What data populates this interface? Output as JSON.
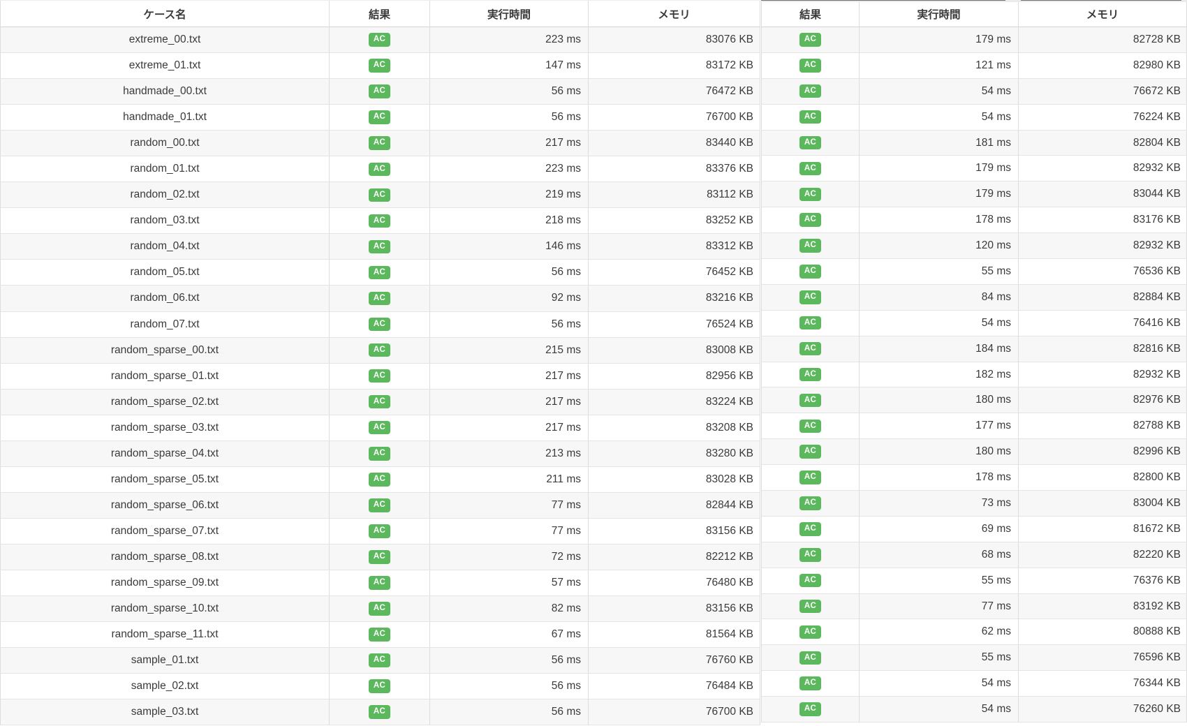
{
  "results_table": {
    "left_headers": [
      "ケース名",
      "結果",
      "実行時間",
      "メモリ"
    ],
    "right_headers": [
      "結果",
      "実行時間",
      "メモリ"
    ],
    "badge": {
      "label": "AC",
      "color": "#5cb85c"
    },
    "colors": {
      "stripe": "#f7f7f7",
      "border": "#dddddd",
      "header_border": "#d2d2d2",
      "text": "#3a3a3a"
    },
    "rows": [
      {
        "case": "extreme_00.txt",
        "left": {
          "result": "AC",
          "time": "223 ms",
          "memory": "83076 KB"
        },
        "right": {
          "result": "AC",
          "time": "179 ms",
          "memory": "82728 KB"
        }
      },
      {
        "case": "extreme_01.txt",
        "left": {
          "result": "AC",
          "time": "147 ms",
          "memory": "83172 KB"
        },
        "right": {
          "result": "AC",
          "time": "121 ms",
          "memory": "82980 KB"
        }
      },
      {
        "case": "handmade_00.txt",
        "left": {
          "result": "AC",
          "time": "56 ms",
          "memory": "76472 KB"
        },
        "right": {
          "result": "AC",
          "time": "54 ms",
          "memory": "76672 KB"
        }
      },
      {
        "case": "handmade_01.txt",
        "left": {
          "result": "AC",
          "time": "56 ms",
          "memory": "76700 KB"
        },
        "right": {
          "result": "AC",
          "time": "54 ms",
          "memory": "76224 KB"
        }
      },
      {
        "case": "random_00.txt",
        "left": {
          "result": "AC",
          "time": "217 ms",
          "memory": "83440 KB"
        },
        "right": {
          "result": "AC",
          "time": "181 ms",
          "memory": "82804 KB"
        }
      },
      {
        "case": "random_01.txt",
        "left": {
          "result": "AC",
          "time": "223 ms",
          "memory": "83376 KB"
        },
        "right": {
          "result": "AC",
          "time": "179 ms",
          "memory": "82932 KB"
        }
      },
      {
        "case": "random_02.txt",
        "left": {
          "result": "AC",
          "time": "219 ms",
          "memory": "83112 KB"
        },
        "right": {
          "result": "AC",
          "time": "179 ms",
          "memory": "83044 KB"
        }
      },
      {
        "case": "random_03.txt",
        "left": {
          "result": "AC",
          "time": "218 ms",
          "memory": "83252 KB"
        },
        "right": {
          "result": "AC",
          "time": "178 ms",
          "memory": "83176 KB"
        }
      },
      {
        "case": "random_04.txt",
        "left": {
          "result": "AC",
          "time": "146 ms",
          "memory": "83312 KB"
        },
        "right": {
          "result": "AC",
          "time": "120 ms",
          "memory": "82932 KB"
        }
      },
      {
        "case": "random_05.txt",
        "left": {
          "result": "AC",
          "time": "56 ms",
          "memory": "76452 KB"
        },
        "right": {
          "result": "AC",
          "time": "55 ms",
          "memory": "76536 KB"
        }
      },
      {
        "case": "random_06.txt",
        "left": {
          "result": "AC",
          "time": "92 ms",
          "memory": "83216 KB"
        },
        "right": {
          "result": "AC",
          "time": "84 ms",
          "memory": "82884 KB"
        }
      },
      {
        "case": "random_07.txt",
        "left": {
          "result": "AC",
          "time": "56 ms",
          "memory": "76524 KB"
        },
        "right": {
          "result": "AC",
          "time": "54 ms",
          "memory": "76416 KB"
        }
      },
      {
        "case": "random_sparse_00.txt",
        "left": {
          "result": "AC",
          "time": "215 ms",
          "memory": "83008 KB"
        },
        "right": {
          "result": "AC",
          "time": "184 ms",
          "memory": "82816 KB"
        }
      },
      {
        "case": "random_sparse_01.txt",
        "left": {
          "result": "AC",
          "time": "217 ms",
          "memory": "82956 KB"
        },
        "right": {
          "result": "AC",
          "time": "182 ms",
          "memory": "82932 KB"
        }
      },
      {
        "case": "random_sparse_02.txt",
        "left": {
          "result": "AC",
          "time": "217 ms",
          "memory": "83224 KB"
        },
        "right": {
          "result": "AC",
          "time": "180 ms",
          "memory": "82976 KB"
        }
      },
      {
        "case": "random_sparse_03.txt",
        "left": {
          "result": "AC",
          "time": "217 ms",
          "memory": "83208 KB"
        },
        "right": {
          "result": "AC",
          "time": "177 ms",
          "memory": "82788 KB"
        }
      },
      {
        "case": "random_sparse_04.txt",
        "left": {
          "result": "AC",
          "time": "213 ms",
          "memory": "83280 KB"
        },
        "right": {
          "result": "AC",
          "time": "180 ms",
          "memory": "82996 KB"
        }
      },
      {
        "case": "random_sparse_05.txt",
        "left": {
          "result": "AC",
          "time": "211 ms",
          "memory": "83028 KB"
        },
        "right": {
          "result": "AC",
          "time": "178 ms",
          "memory": "82800 KB"
        }
      },
      {
        "case": "random_sparse_06.txt",
        "left": {
          "result": "AC",
          "time": "77 ms",
          "memory": "82844 KB"
        },
        "right": {
          "result": "AC",
          "time": "73 ms",
          "memory": "83004 KB"
        }
      },
      {
        "case": "random_sparse_07.txt",
        "left": {
          "result": "AC",
          "time": "77 ms",
          "memory": "83156 KB"
        },
        "right": {
          "result": "AC",
          "time": "69 ms",
          "memory": "81672 KB"
        }
      },
      {
        "case": "random_sparse_08.txt",
        "left": {
          "result": "AC",
          "time": "72 ms",
          "memory": "82212 KB"
        },
        "right": {
          "result": "AC",
          "time": "68 ms",
          "memory": "82220 KB"
        }
      },
      {
        "case": "random_sparse_09.txt",
        "left": {
          "result": "AC",
          "time": "57 ms",
          "memory": "76480 KB"
        },
        "right": {
          "result": "AC",
          "time": "55 ms",
          "memory": "76376 KB"
        }
      },
      {
        "case": "random_sparse_10.txt",
        "left": {
          "result": "AC",
          "time": "82 ms",
          "memory": "83156 KB"
        },
        "right": {
          "result": "AC",
          "time": "77 ms",
          "memory": "83192 KB"
        }
      },
      {
        "case": "random_sparse_11.txt",
        "left": {
          "result": "AC",
          "time": "67 ms",
          "memory": "81564 KB"
        },
        "right": {
          "result": "AC",
          "time": "62 ms",
          "memory": "80888 KB"
        }
      },
      {
        "case": "sample_01.txt",
        "left": {
          "result": "AC",
          "time": "56 ms",
          "memory": "76760 KB"
        },
        "right": {
          "result": "AC",
          "time": "55 ms",
          "memory": "76596 KB"
        }
      },
      {
        "case": "sample_02.txt",
        "left": {
          "result": "AC",
          "time": "56 ms",
          "memory": "76484 KB"
        },
        "right": {
          "result": "AC",
          "time": "54 ms",
          "memory": "76344 KB"
        }
      },
      {
        "case": "sample_03.txt",
        "left": {
          "result": "AC",
          "time": "56 ms",
          "memory": "76700 KB"
        },
        "right": {
          "result": "AC",
          "time": "54 ms",
          "memory": "76260 KB"
        }
      }
    ]
  }
}
